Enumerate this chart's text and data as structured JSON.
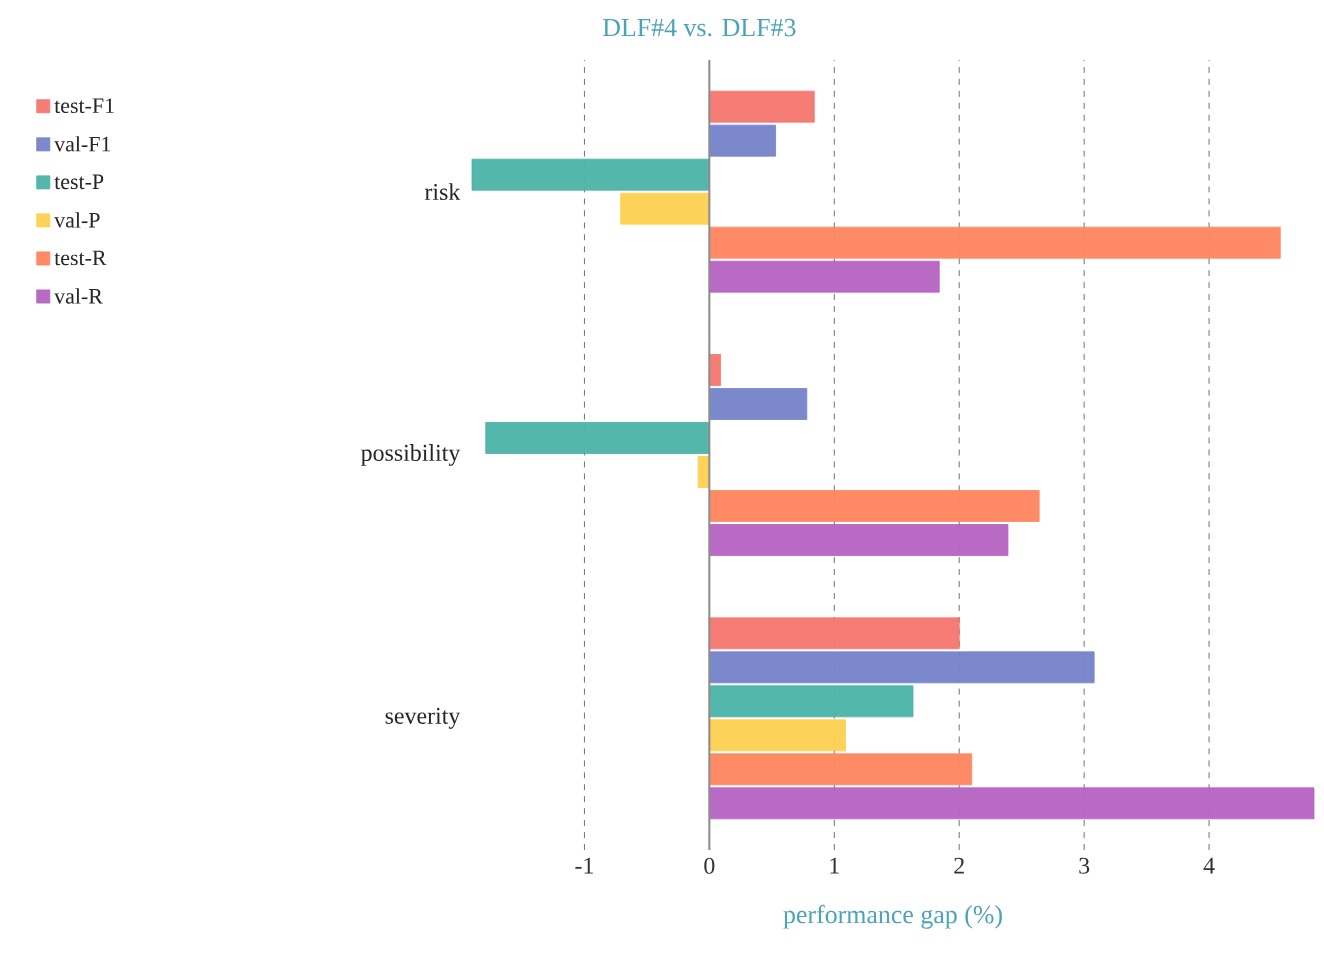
{
  "chart_data": {
    "type": "bar",
    "orientation": "horizontal",
    "title": "DLF#4 vs. DLF#3",
    "xlabel": "performance gap (%)",
    "categories": [
      "risk",
      "possibility",
      "severity"
    ],
    "series": [
      {
        "name": "test-F1",
        "color": "#f4766e",
        "values": [
          0.84,
          0.09,
          2.0
        ]
      },
      {
        "name": "val-F1",
        "color": "#7582c9",
        "values": [
          0.53,
          0.78,
          3.08
        ]
      },
      {
        "name": "test-P",
        "color": "#4bb3a6",
        "values": [
          -1.9,
          -1.79,
          1.63
        ]
      },
      {
        "name": "val-P",
        "color": "#fdd04f",
        "values": [
          -0.71,
          -0.09,
          1.09
        ]
      },
      {
        "name": "test-R",
        "color": "#fe855e",
        "values": [
          4.57,
          2.64,
          2.1
        ]
      },
      {
        "name": "val-R",
        "color": "#b562c2",
        "values": [
          1.84,
          2.39,
          4.84
        ]
      }
    ],
    "xlim": [
      -1.9,
      4.84
    ],
    "xticks": [
      -1,
      0,
      1,
      2,
      3,
      4
    ],
    "grid": "x",
    "legend": "top left"
  }
}
